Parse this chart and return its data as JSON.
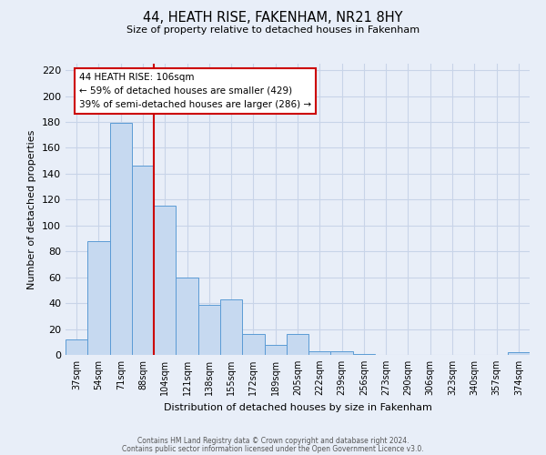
{
  "title": "44, HEATH RISE, FAKENHAM, NR21 8HY",
  "subtitle": "Size of property relative to detached houses in Fakenham",
  "xlabel": "Distribution of detached houses by size in Fakenham",
  "ylabel": "Number of detached properties",
  "bar_labels": [
    "37sqm",
    "54sqm",
    "71sqm",
    "88sqm",
    "104sqm",
    "121sqm",
    "138sqm",
    "155sqm",
    "172sqm",
    "189sqm",
    "205sqm",
    "222sqm",
    "239sqm",
    "256sqm",
    "273sqm",
    "290sqm",
    "306sqm",
    "323sqm",
    "340sqm",
    "357sqm",
    "374sqm"
  ],
  "bar_values": [
    12,
    88,
    179,
    146,
    115,
    60,
    39,
    43,
    16,
    8,
    16,
    3,
    3,
    1,
    0,
    0,
    0,
    0,
    0,
    0,
    2
  ],
  "bar_color": "#c6d9f0",
  "bar_edge_color": "#5b9bd5",
  "vline_color": "#cc0000",
  "vline_position": 3.5,
  "annotation_text": "44 HEATH RISE: 106sqm\n← 59% of detached houses are smaller (429)\n39% of semi-detached houses are larger (286) →",
  "annotation_box_color": "#ffffff",
  "annotation_box_edge": "#cc0000",
  "ylim": [
    0,
    225
  ],
  "yticks": [
    0,
    20,
    40,
    60,
    80,
    100,
    120,
    140,
    160,
    180,
    200,
    220
  ],
  "grid_color": "#c8d4e8",
  "background_color": "#e8eef8",
  "footer_line1": "Contains HM Land Registry data © Crown copyright and database right 2024.",
  "footer_line2": "Contains public sector information licensed under the Open Government Licence v3.0."
}
